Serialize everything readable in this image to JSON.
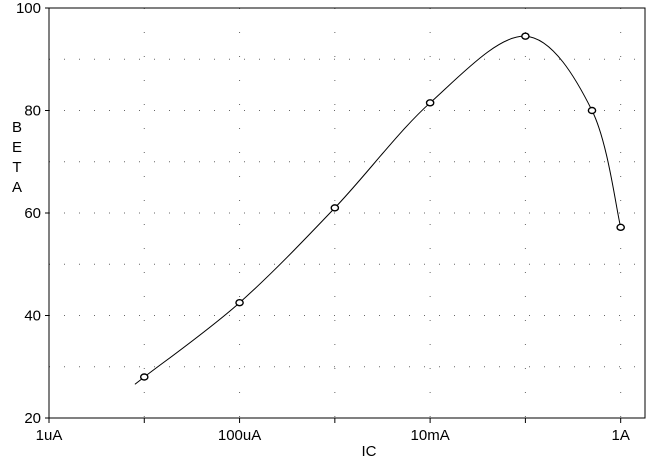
{
  "chart_data": {
    "type": "line",
    "title": "",
    "xlabel": "IC",
    "ylabel": "BETA",
    "x_scale": "log",
    "x_unit": "A",
    "xlim": [
      1e-06,
      1.8
    ],
    "ylim": [
      20,
      100
    ],
    "x_ticks": [
      {
        "value": 1e-06,
        "label": "1uA"
      },
      {
        "value": 0.0001,
        "label": "100uA"
      },
      {
        "value": 0.01,
        "label": "10mA"
      },
      {
        "value": 1,
        "label": "1A"
      }
    ],
    "y_ticks": [
      {
        "value": 20,
        "label": "20"
      },
      {
        "value": 40,
        "label": "40"
      },
      {
        "value": 60,
        "label": "60"
      },
      {
        "value": 80,
        "label": "80"
      },
      {
        "value": 100,
        "label": "100"
      }
    ],
    "grid": "dotted",
    "legend": "none",
    "series": [
      {
        "color": "#000000",
        "marker": "open-circle",
        "points": [
          {
            "x": 1e-05,
            "y": 28
          },
          {
            "x": 0.0001,
            "y": 42.5
          },
          {
            "x": 0.001,
            "y": 61
          },
          {
            "x": 0.01,
            "y": 81.5
          },
          {
            "x": 0.1,
            "y": 94.5
          },
          {
            "x": 0.5,
            "y": 80
          },
          {
            "x": 1,
            "y": 57.2
          }
        ]
      }
    ]
  }
}
